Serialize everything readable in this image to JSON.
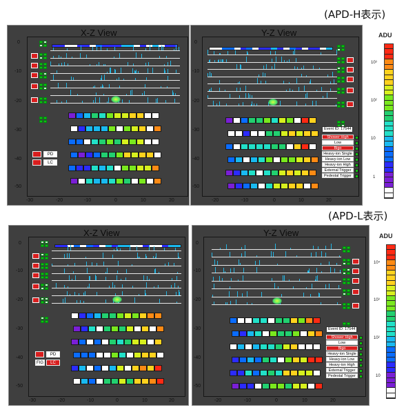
{
  "sections": [
    {
      "label": "(APD-H表示)",
      "xz": {
        "title": "X-Z View",
        "y_ticks": [
          "0",
          "-10",
          "-20",
          "-30",
          "-40",
          "-50"
        ],
        "x_ticks": [
          "-30",
          "-20",
          "-10",
          "0",
          "10",
          "20"
        ],
        "pd_button": "PD",
        "lc_button": "LC"
      },
      "yz": {
        "title": "Y-Z View",
        "y_ticks": [
          "0",
          "-10",
          "-20",
          "-30",
          "-40",
          "-50"
        ],
        "x_ticks": [
          "-20",
          "-10",
          "0",
          "10",
          "20"
        ],
        "event_id": "Event ID: 17544",
        "trigger_legend": [
          "Shower High",
          "Low",
          "Bigo",
          "Heavy-ion Single",
          "Heavy-ion Low",
          "Heavy-ion High",
          "External Trigger",
          "Pedestal Trigger"
        ]
      },
      "adu": {
        "title": "ADU",
        "ticks": [
          "10³",
          "10²",
          "10",
          "1"
        ]
      }
    },
    {
      "label": "(APD-L表示)",
      "xz": {
        "title": "X-Z View",
        "y_ticks": [
          "0",
          "-10",
          "-20",
          "-30",
          "-40",
          "-50"
        ],
        "x_ticks": [
          "-30",
          "-20",
          "-10",
          "0",
          "10",
          "20"
        ],
        "pd_button": "PD",
        "lc_button": "LC",
        "fig_button": "FIG"
      },
      "yz": {
        "title": "Y-Z View",
        "y_ticks": [
          "0",
          "-10",
          "-20",
          "-30",
          "-40",
          "-50"
        ],
        "x_ticks": [
          "-20",
          "-10",
          "0",
          "10",
          "20"
        ],
        "event_id": "Event ID: 17544",
        "trigger_legend": [
          "Shower High",
          "Low",
          "Bigo",
          "Heavy-ion Single",
          "Heavy-ion Low",
          "Heavy-ion High",
          "External Trigger",
          "Pedestal Trigger"
        ]
      },
      "adu": {
        "title": "ADU",
        "ticks": [
          "10⁴",
          "10³",
          "10²",
          "10"
        ]
      }
    }
  ],
  "colors": {
    "panel_bg": "#3f3f3f",
    "trace": "#e8e8e8",
    "spike": "#23b7e6",
    "red_tag": "#d81e1e",
    "indicator_on": "#10c010",
    "ramp": [
      "#ffffff",
      "#7a1fd6",
      "#2b2bff",
      "#0a6cff",
      "#19b9f0",
      "#22e0c8",
      "#22d070",
      "#7ae81e",
      "#d7f01e",
      "#ffd21e",
      "#ff8a14",
      "#ff2a14"
    ]
  }
}
